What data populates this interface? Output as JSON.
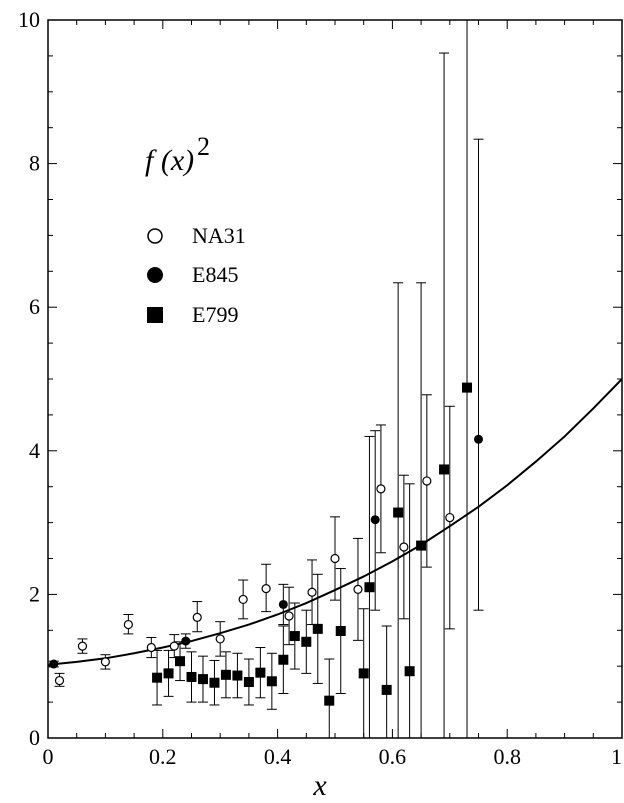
{
  "chart_data": {
    "type": "scatter",
    "title": "",
    "xlabel": "x",
    "ylabel": "",
    "annotation": {
      "base": "f (x)",
      "exponent": "2"
    },
    "xlim": [
      0,
      1
    ],
    "ylim": [
      0,
      10
    ],
    "x_ticks": [
      0,
      0.2,
      0.4,
      0.6,
      0.8,
      1
    ],
    "x_tick_labels": [
      "0",
      "0.2",
      "0.4",
      "0.6",
      "0.8",
      "1"
    ],
    "y_ticks": [
      0,
      2,
      4,
      6,
      8,
      10
    ],
    "y_tick_labels": [
      "0",
      "2",
      "4",
      "6",
      "8",
      "10"
    ],
    "grid": false,
    "legend_position": "upper-left",
    "series": [
      {
        "name": "NA31",
        "marker": "open-circle",
        "points": [
          {
            "x": 0.02,
            "y": 0.8,
            "lo": 0.72,
            "hi": 0.9
          },
          {
            "x": 0.06,
            "y": 1.28,
            "lo": 1.18,
            "hi": 1.38
          },
          {
            "x": 0.1,
            "y": 1.06,
            "lo": 0.96,
            "hi": 1.16
          },
          {
            "x": 0.14,
            "y": 1.58,
            "lo": 1.45,
            "hi": 1.72
          },
          {
            "x": 0.18,
            "y": 1.26,
            "lo": 1.12,
            "hi": 1.4
          },
          {
            "x": 0.22,
            "y": 1.28,
            "lo": 1.12,
            "hi": 1.44
          },
          {
            "x": 0.26,
            "y": 1.68,
            "lo": 1.48,
            "hi": 1.9
          },
          {
            "x": 0.3,
            "y": 1.38,
            "lo": 1.14,
            "hi": 1.62
          },
          {
            "x": 0.34,
            "y": 1.93,
            "lo": 1.66,
            "hi": 2.2
          },
          {
            "x": 0.38,
            "y": 2.08,
            "lo": 1.76,
            "hi": 2.42
          },
          {
            "x": 0.42,
            "y": 1.7,
            "lo": 1.3,
            "hi": 2.1
          },
          {
            "x": 0.46,
            "y": 2.03,
            "lo": 1.58,
            "hi": 2.48
          },
          {
            "x": 0.5,
            "y": 2.5,
            "lo": 1.92,
            "hi": 3.08
          },
          {
            "x": 0.54,
            "y": 2.07,
            "lo": 1.36,
            "hi": 2.78
          },
          {
            "x": 0.58,
            "y": 3.47,
            "lo": 2.58,
            "hi": 4.36
          },
          {
            "x": 0.62,
            "y": 2.66,
            "lo": 1.66,
            "hi": 3.66
          },
          {
            "x": 0.66,
            "y": 3.58,
            "lo": 2.38,
            "hi": 4.78
          },
          {
            "x": 0.7,
            "y": 3.07,
            "lo": 1.52,
            "hi": 4.62
          }
        ]
      },
      {
        "name": "E845",
        "marker": "filled-circle",
        "points": [
          {
            "x": 0.01,
            "y": 1.03,
            "lo": 0.99,
            "hi": 1.07
          },
          {
            "x": 0.24,
            "y": 1.35,
            "lo": 1.25,
            "hi": 1.45
          },
          {
            "x": 0.41,
            "y": 1.86,
            "lo": 1.58,
            "hi": 2.14
          },
          {
            "x": 0.57,
            "y": 3.04,
            "lo": 1.78,
            "hi": 4.28
          },
          {
            "x": 0.75,
            "y": 4.16,
            "lo": 1.78,
            "hi": 8.34
          }
        ]
      },
      {
        "name": "E799",
        "marker": "filled-square",
        "points": [
          {
            "x": 0.19,
            "y": 0.84,
            "lo": 0.46,
            "hi": 1.22
          },
          {
            "x": 0.21,
            "y": 0.9,
            "lo": 0.58,
            "hi": 1.22
          },
          {
            "x": 0.23,
            "y": 1.07,
            "lo": 0.8,
            "hi": 1.34
          },
          {
            "x": 0.25,
            "y": 0.85,
            "lo": 0.5,
            "hi": 1.2
          },
          {
            "x": 0.27,
            "y": 0.82,
            "lo": 0.5,
            "hi": 1.14
          },
          {
            "x": 0.29,
            "y": 0.77,
            "lo": 0.46,
            "hi": 1.08
          },
          {
            "x": 0.31,
            "y": 0.88,
            "lo": 0.56,
            "hi": 1.2
          },
          {
            "x": 0.33,
            "y": 0.87,
            "lo": 0.56,
            "hi": 1.18
          },
          {
            "x": 0.35,
            "y": 0.78,
            "lo": 0.46,
            "hi": 1.1
          },
          {
            "x": 0.37,
            "y": 0.91,
            "lo": 0.56,
            "hi": 1.26
          },
          {
            "x": 0.39,
            "y": 0.79,
            "lo": 0.4,
            "hi": 1.18
          },
          {
            "x": 0.41,
            "y": 1.09,
            "lo": 0.62,
            "hi": 1.56
          },
          {
            "x": 0.43,
            "y": 1.42,
            "lo": 0.96,
            "hi": 1.88
          },
          {
            "x": 0.45,
            "y": 1.34,
            "lo": 0.9,
            "hi": 1.78
          },
          {
            "x": 0.47,
            "y": 1.52,
            "lo": 0.76,
            "hi": 2.28
          },
          {
            "x": 0.49,
            "y": 0.52,
            "lo": 0.0,
            "hi": 1.1
          },
          {
            "x": 0.51,
            "y": 1.49,
            "lo": 0.62,
            "hi": 2.36
          },
          {
            "x": 0.55,
            "y": 0.9,
            "lo": 0.0,
            "hi": 1.8
          },
          {
            "x": 0.56,
            "y": 2.1,
            "lo": 0.0,
            "hi": 4.2
          },
          {
            "x": 0.59,
            "y": 0.67,
            "lo": 0.0,
            "hi": 1.56
          },
          {
            "x": 0.61,
            "y": 3.14,
            "lo": 0.0,
            "hi": 6.34
          },
          {
            "x": 0.63,
            "y": 0.93,
            "lo": 0.0,
            "hi": 3.54
          },
          {
            "x": 0.65,
            "y": 2.68,
            "lo": 0.0,
            "hi": 6.34
          },
          {
            "x": 0.69,
            "y": 3.74,
            "lo": 0.0,
            "hi": 9.54
          },
          {
            "x": 0.73,
            "y": 4.88,
            "lo": 0.0,
            "hi": 10.0
          }
        ]
      }
    ],
    "curve": {
      "label": "",
      "x": [
        0,
        0.05,
        0.1,
        0.15,
        0.2,
        0.25,
        0.3,
        0.35,
        0.4,
        0.45,
        0.5,
        0.55,
        0.6,
        0.65,
        0.7,
        0.75,
        0.8,
        0.85,
        0.9,
        0.95,
        1.0
      ],
      "y": [
        1.02,
        1.06,
        1.11,
        1.18,
        1.26,
        1.35,
        1.46,
        1.58,
        1.72,
        1.88,
        2.06,
        2.25,
        2.46,
        2.69,
        2.95,
        3.22,
        3.52,
        3.85,
        4.2,
        4.59,
        5.0
      ]
    }
  }
}
